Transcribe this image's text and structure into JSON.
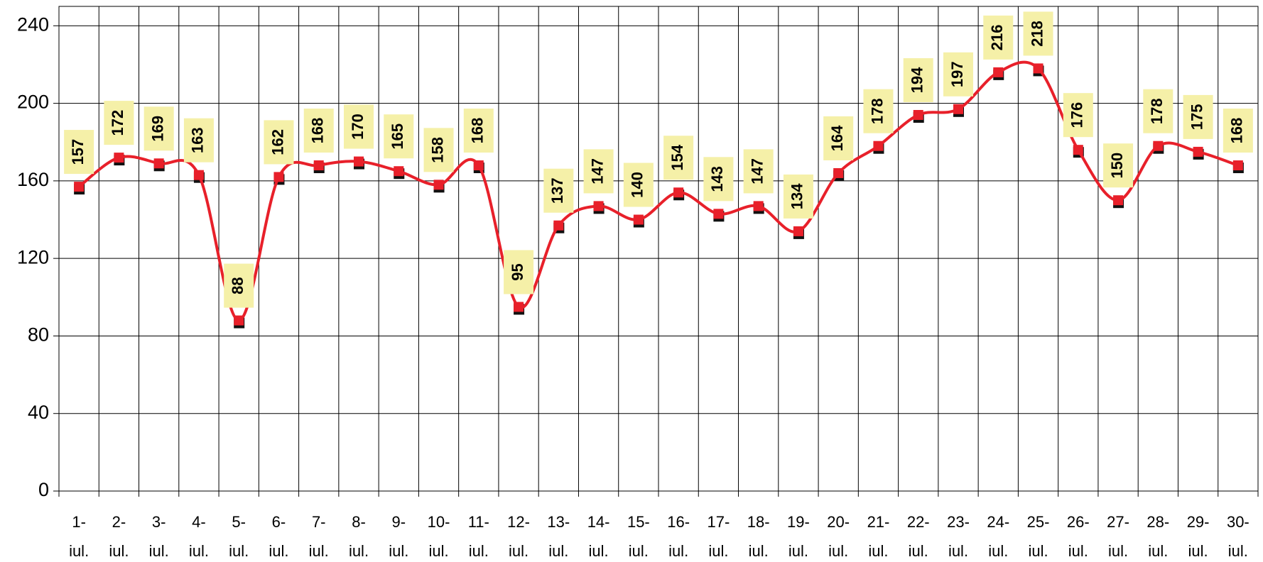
{
  "chart_data": {
    "type": "line",
    "categories": [
      "1- iul.",
      "2- iul.",
      "3- iul.",
      "4- iul.",
      "5- iul.",
      "6- iul.",
      "7- iul.",
      "8- iul.",
      "9- iul.",
      "10- iul.",
      "11- iul.",
      "12- iul.",
      "13- iul.",
      "14- iul.",
      "15- iul.",
      "16- iul.",
      "17- iul.",
      "18- iul.",
      "19- iul.",
      "20- iul.",
      "21- iul.",
      "22- iul.",
      "23- iul.",
      "24- iul.",
      "25- iul.",
      "26- iul.",
      "27- iul.",
      "28- iul.",
      "29- iul.",
      "30- iul."
    ],
    "values": [
      157,
      172,
      169,
      163,
      88,
      162,
      168,
      170,
      165,
      158,
      168,
      95,
      137,
      147,
      140,
      154,
      143,
      147,
      134,
      164,
      178,
      194,
      197,
      216,
      218,
      176,
      150,
      178,
      175,
      168
    ],
    "color": "#e8202a",
    "label_background": "#f5f0a8",
    "ylim": [
      0,
      250
    ],
    "yticks": [
      0,
      40,
      80,
      120,
      160,
      200,
      240
    ],
    "grid": true
  }
}
